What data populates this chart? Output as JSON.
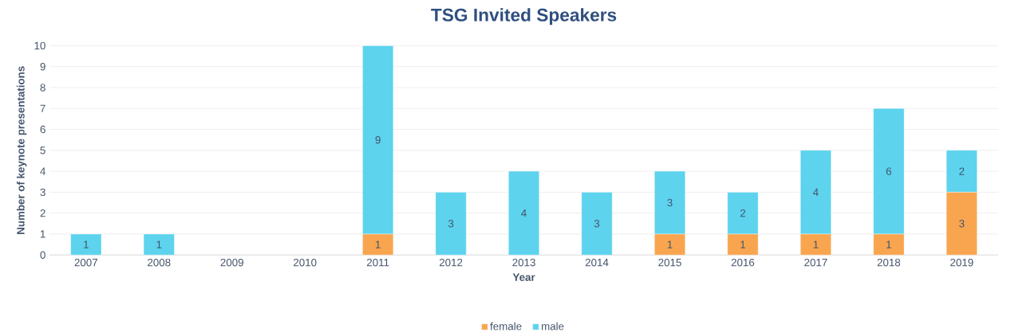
{
  "chart_data": {
    "type": "bar",
    "title": "TSG Invited Speakers",
    "xlabel": "Year",
    "ylabel": "Number of keynote presentations",
    "categories": [
      "2007",
      "2008",
      "2009",
      "2010",
      "2011",
      "2012",
      "2013",
      "2014",
      "2015",
      "2016",
      "2017",
      "2018",
      "2019"
    ],
    "stacked": true,
    "series": [
      {
        "name": "female",
        "color": "#f9a54f",
        "values": [
          0,
          0,
          0,
          0,
          1,
          0,
          0,
          0,
          1,
          1,
          1,
          1,
          3
        ],
        "value_labels": [
          null,
          null,
          null,
          null,
          "1",
          null,
          null,
          null,
          "1",
          "1",
          "1",
          "1",
          "3"
        ]
      },
      {
        "name": "male",
        "color": "#5dd3ee",
        "values": [
          1,
          1,
          0,
          0,
          9,
          3,
          4,
          3,
          3,
          2,
          4,
          6,
          2
        ],
        "value_labels": [
          "1",
          "1",
          null,
          null,
          "9",
          "3",
          "4",
          "3",
          "3",
          "2",
          "4",
          "6",
          "2"
        ]
      }
    ],
    "ylim": [
      0,
      10
    ],
    "yticks": [
      0,
      1,
      2,
      3,
      4,
      5,
      6,
      7,
      8,
      9,
      10
    ],
    "grid": "y",
    "legend": "bottom"
  }
}
